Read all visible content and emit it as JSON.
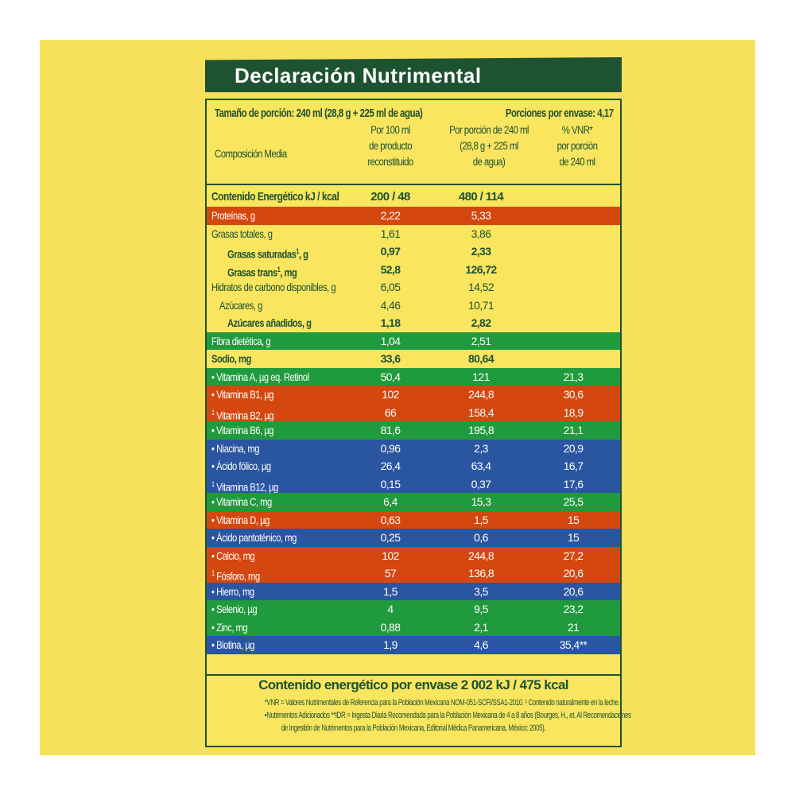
{
  "title": "Declaración Nutrimental",
  "serving_size": "Tamaño de porción: 240 ml (28,8 g + 225 ml de agua)",
  "servings_per_container": "Porciones por envase: 4,17",
  "headers": {
    "composition": "Composición Media",
    "col1": [
      "Por 100 ml",
      "de producto",
      "reconstituido"
    ],
    "col2": [
      "Por porción de 240 ml",
      "(28,8 g + 225 ml",
      "de agua)"
    ],
    "col3": [
      "% VNR*",
      "por porción",
      "de 240 ml"
    ]
  },
  "energy": {
    "label": "Contenido Energético kJ / kcal",
    "v1": "200 / 48",
    "v2": "480 / 114"
  },
  "colors": {
    "background": "#f7e05c",
    "dark_green": "#1e5331",
    "orange": "#d4470f",
    "green": "#1f9a3c",
    "blue": "#2a55a0"
  },
  "rows": [
    {
      "label": "Proteínas, g",
      "v1": "2,22",
      "v2": "5,33",
      "v3": "",
      "color": "orange"
    },
    {
      "label": "Grasas totales, g",
      "v1": "1,61",
      "v2": "3,86",
      "v3": ""
    },
    {
      "label": "Grasas saturadas",
      "sup": "1",
      "suffix": ", g",
      "v1": "0,97",
      "v2": "2,33",
      "v3": "",
      "bold": true,
      "indent": 2
    },
    {
      "label": "Grasas trans",
      "sup": "1",
      "suffix": ", mg",
      "v1": "52,8",
      "v2": "126,72",
      "v3": "",
      "bold": true,
      "indent": 2
    },
    {
      "label": "Hidratos de carbono disponibles, g",
      "v1": "6,05",
      "v2": "14,52",
      "v3": ""
    },
    {
      "label": "Azúcares, g",
      "v1": "4,46",
      "v2": "10,71",
      "v3": "",
      "indent": 1
    },
    {
      "label": "Azúcares añadidos, g",
      "v1": "1,18",
      "v2": "2,82",
      "v3": "",
      "bold": true,
      "indent": 2
    },
    {
      "label": "Fibra dietética, g",
      "v1": "1,04",
      "v2": "2,51",
      "v3": "",
      "color": "green"
    },
    {
      "label": "Sodio, mg",
      "v1": "33,6",
      "v2": "80,64",
      "v3": "",
      "bold": true
    },
    {
      "prefix": "•",
      "label": "Vitamina A, µg eq. Retinol",
      "v1": "50,4",
      "v2": "121",
      "v3": "21,3",
      "color": "green"
    },
    {
      "prefix": "•",
      "label": "Vitamina B1, µg",
      "v1": "102",
      "v2": "244,8",
      "v3": "30,6",
      "color": "orange"
    },
    {
      "prefix_sup": "1",
      "label": "Vitamina B2, µg",
      "v1": "66",
      "v2": "158,4",
      "v3": "18,9",
      "color": "orange"
    },
    {
      "prefix": "•",
      "label": "Vitamina B6, µg",
      "v1": "81,6",
      "v2": "195,8",
      "v3": "21,1",
      "color": "green"
    },
    {
      "prefix": "•",
      "label": "Niacina, mg",
      "v1": "0,96",
      "v2": "2,3",
      "v3": "20,9",
      "color": "blue"
    },
    {
      "prefix": "•",
      "label": "Ácido fólico, µg",
      "v1": "26,4",
      "v2": "63,4",
      "v3": "16,7",
      "color": "blue"
    },
    {
      "prefix_sup": "1",
      "label": "Vitamina B12, µg",
      "v1": "0,15",
      "v2": "0,37",
      "v3": "17,6",
      "color": "blue"
    },
    {
      "prefix": "•",
      "label": "Vitamina C, mg",
      "v1": "6,4",
      "v2": "15,3",
      "v3": "25,5",
      "color": "green"
    },
    {
      "prefix": "•",
      "label": "Vitamina D, µg",
      "v1": "0,63",
      "v2": "1,5",
      "v3": "15",
      "color": "orange"
    },
    {
      "prefix": "•",
      "label": "Ácido pantoténico, mg",
      "v1": "0,25",
      "v2": "0,6",
      "v3": "15",
      "color": "blue"
    },
    {
      "prefix": "•",
      "label": "Calcio, mg",
      "v1": "102",
      "v2": "244,8",
      "v3": "27,2",
      "color": "orange"
    },
    {
      "prefix_sup": "1",
      "label": "Fósforo, mg",
      "v1": "57",
      "v2": "136,8",
      "v3": "20,6",
      "color": "orange"
    },
    {
      "prefix": "•",
      "label": "Hierro, mg",
      "v1": "1,5",
      "v2": "3,5",
      "v3": "20,6",
      "color": "blue"
    },
    {
      "prefix": "•",
      "label": "Selenio, µg",
      "v1": "4",
      "v2": "9,5",
      "v3": "23,2",
      "color": "green"
    },
    {
      "prefix": "•",
      "label": "Zinc, mg",
      "v1": "0,88",
      "v2": "2,1",
      "v3": "21",
      "color": "green"
    },
    {
      "prefix": "•",
      "label": "Biotina, µg",
      "v1": "1,9",
      "v2": "4,6",
      "v3": "35,4**",
      "color": "blue"
    }
  ],
  "total": "Contenido energético por envase 2 002 kJ / 475 kcal",
  "footnotes": [
    "*VNR = Valores Nutrimentales de Referencia para la Población Mexicana NOM-051-SCFI/SSA1-2010. ¹ Contenido naturalmente en la leche.",
    "•Nutrimentos Adicionados **IDR = Ingesta Diaria Recomendada para la Población Mexicana de 4 a 8 años (Bourges, H., et. Al Recomendaciones",
    "de Ingestión de Nutrimentos para la Población Mexicana, Editorial Médica Panamericana, México: 2005)."
  ]
}
